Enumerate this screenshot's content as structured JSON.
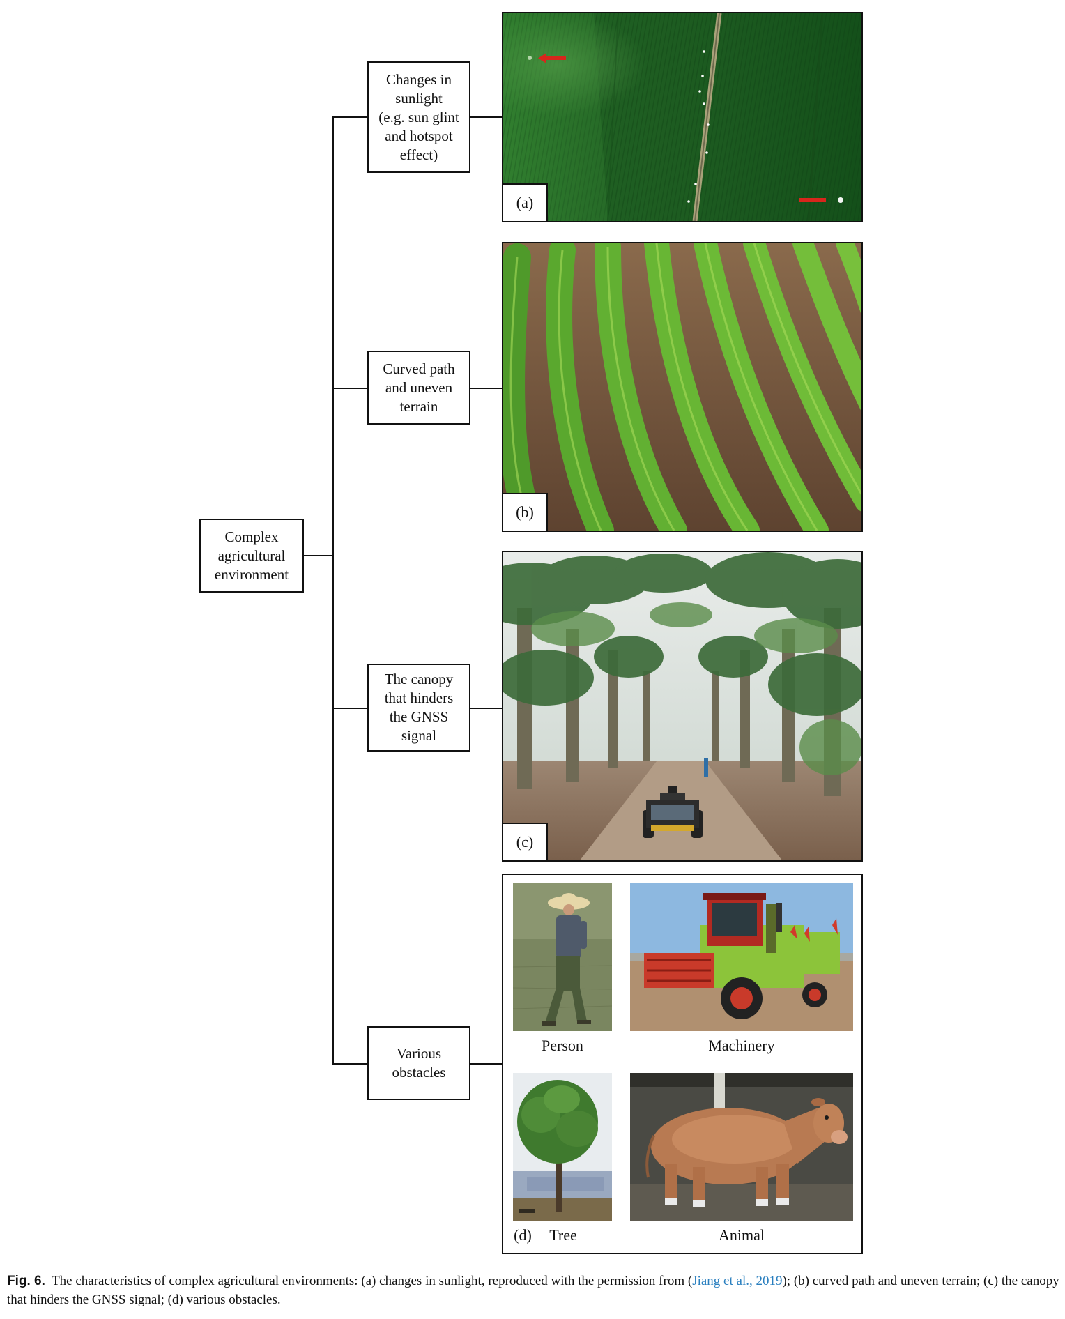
{
  "diagram": {
    "root": "Complex\nagricultural\nenvironment",
    "branches": [
      {
        "label": "Changes in\nsunlight\n(e.g. sun glint\nand hotspot\neffect)",
        "panel_label": "(a)",
        "image": "aerial-crop-field-photo"
      },
      {
        "label": "Curved path\nand uneven\nterrain",
        "panel_label": "(b)",
        "image": "curved-crop-rows-photo"
      },
      {
        "label": "The canopy\nthat hinders\nthe GNSS\nsignal",
        "panel_label": "(c)",
        "image": "banana-plantation-robot-photo"
      },
      {
        "label": "Various\nobstacles",
        "panel_label": "(d)",
        "image": "obstacle-collage"
      }
    ],
    "obstacles": [
      "Person",
      "Machinery",
      "Tree",
      "Animal"
    ]
  },
  "caption": {
    "fig": "Fig. 6.",
    "text_before": "The characteristics of complex agricultural environments: (a) changes in sunlight, reproduced with the permission from (",
    "link": "Jiang et al., 2019",
    "text_after": "); (b) curved path and uneven terrain; (c) the canopy that hinders the GNSS signal; (d) various obstacles."
  },
  "colors": {
    "line": "#111111",
    "link": "#2a7fbf",
    "arrow": "#d8261c"
  }
}
